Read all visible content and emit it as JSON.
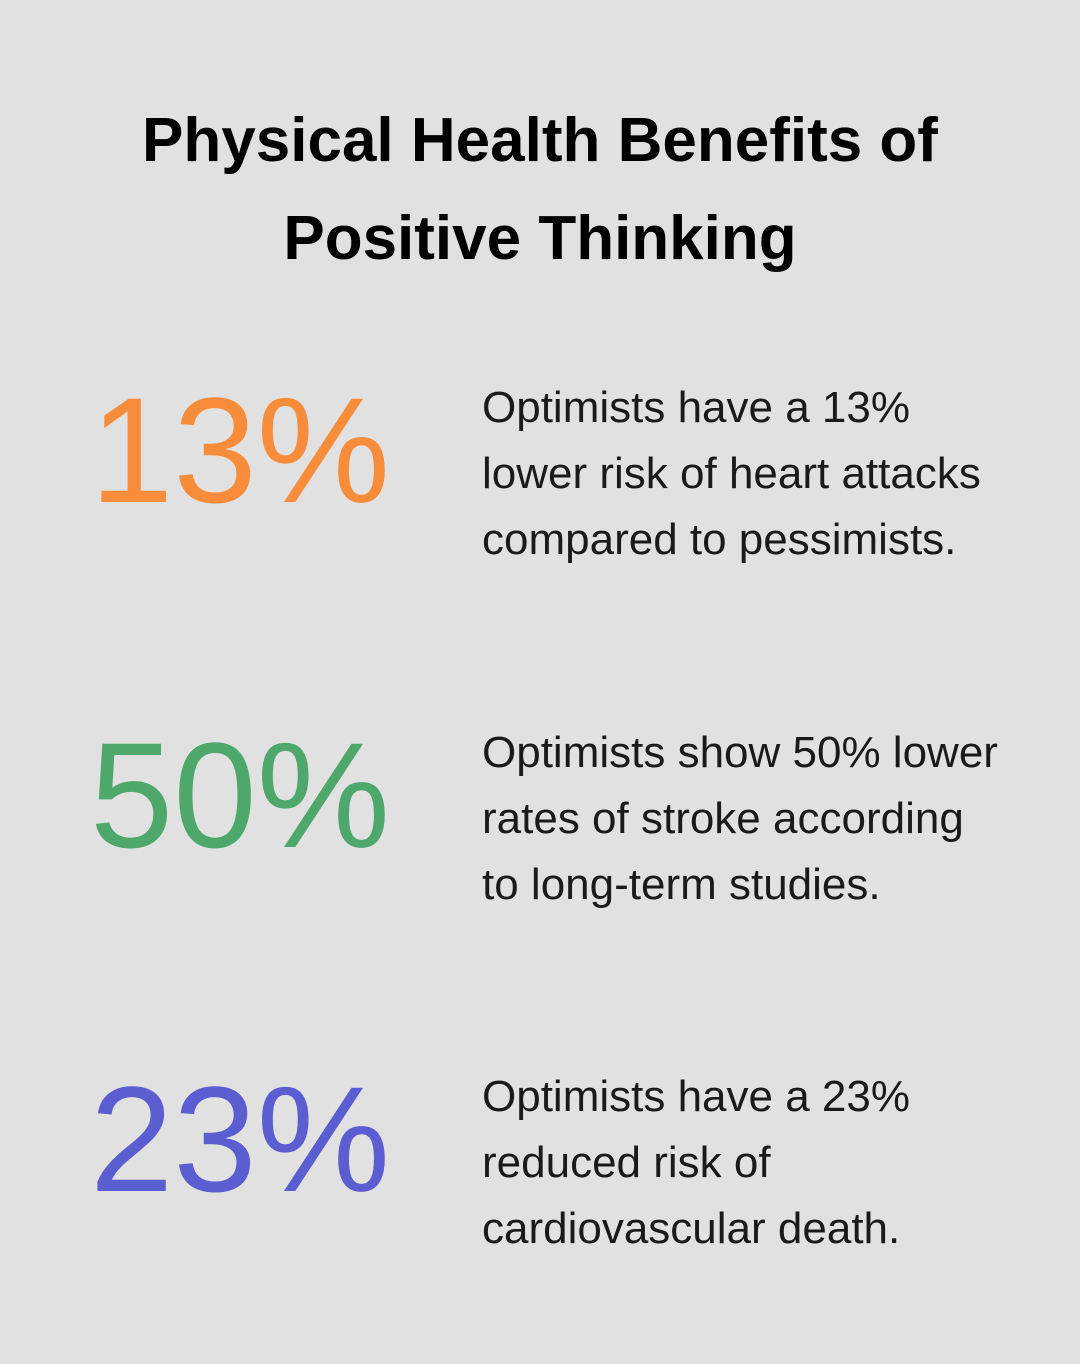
{
  "header": {
    "title": "Physical Health Benefits of Positive Thinking"
  },
  "items": [
    {
      "stat": "13%",
      "text": "Optimists have a 13% lower risk of heart attacks compared to pessimists."
    },
    {
      "stat": "50%",
      "text": "Optimists show 50% lower rates of stroke according to long-term studies."
    },
    {
      "stat": "23%",
      "text": "Optimists have a 23% reduced risk of cardiovascular death."
    }
  ]
}
